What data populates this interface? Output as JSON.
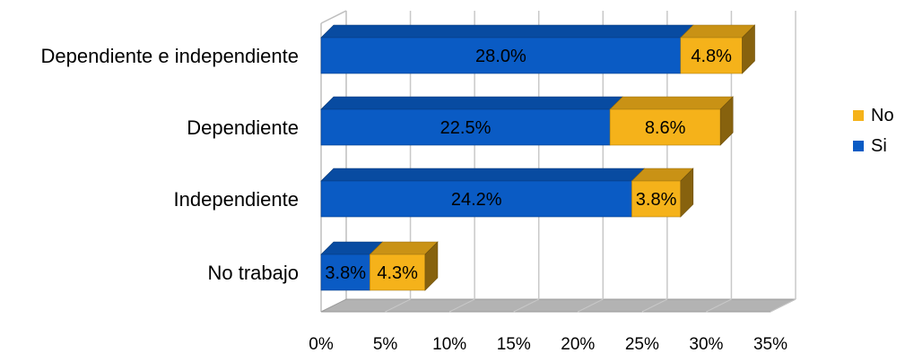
{
  "chart_data": {
    "type": "bar",
    "orientation": "horizontal",
    "stacked": true,
    "style": "3d",
    "categories": [
      "Dependiente e independiente",
      "Dependiente",
      "Independiente",
      "No trabajo"
    ],
    "series": [
      {
        "name": "Si",
        "values": [
          28.0,
          22.5,
          24.2,
          3.8
        ],
        "labels": [
          "28.0%",
          "22.5%",
          "24.2%",
          "3.8%"
        ],
        "color": "#0A5BC4"
      },
      {
        "name": "No",
        "values": [
          4.8,
          8.6,
          3.8,
          4.3
        ],
        "labels": [
          "4.8%",
          "8.6%",
          "3.8%",
          "4.3%"
        ],
        "color": "#F5B21A"
      }
    ],
    "xlim": [
      0,
      35
    ],
    "xticks": [
      0,
      5,
      10,
      15,
      20,
      25,
      30,
      35
    ],
    "xtick_labels": [
      "0%",
      "5%",
      "10%",
      "15%",
      "20%",
      "25%",
      "30%",
      "35%"
    ],
    "grid": true,
    "legend": {
      "position": "right",
      "entries": [
        "No",
        "Si"
      ]
    }
  }
}
